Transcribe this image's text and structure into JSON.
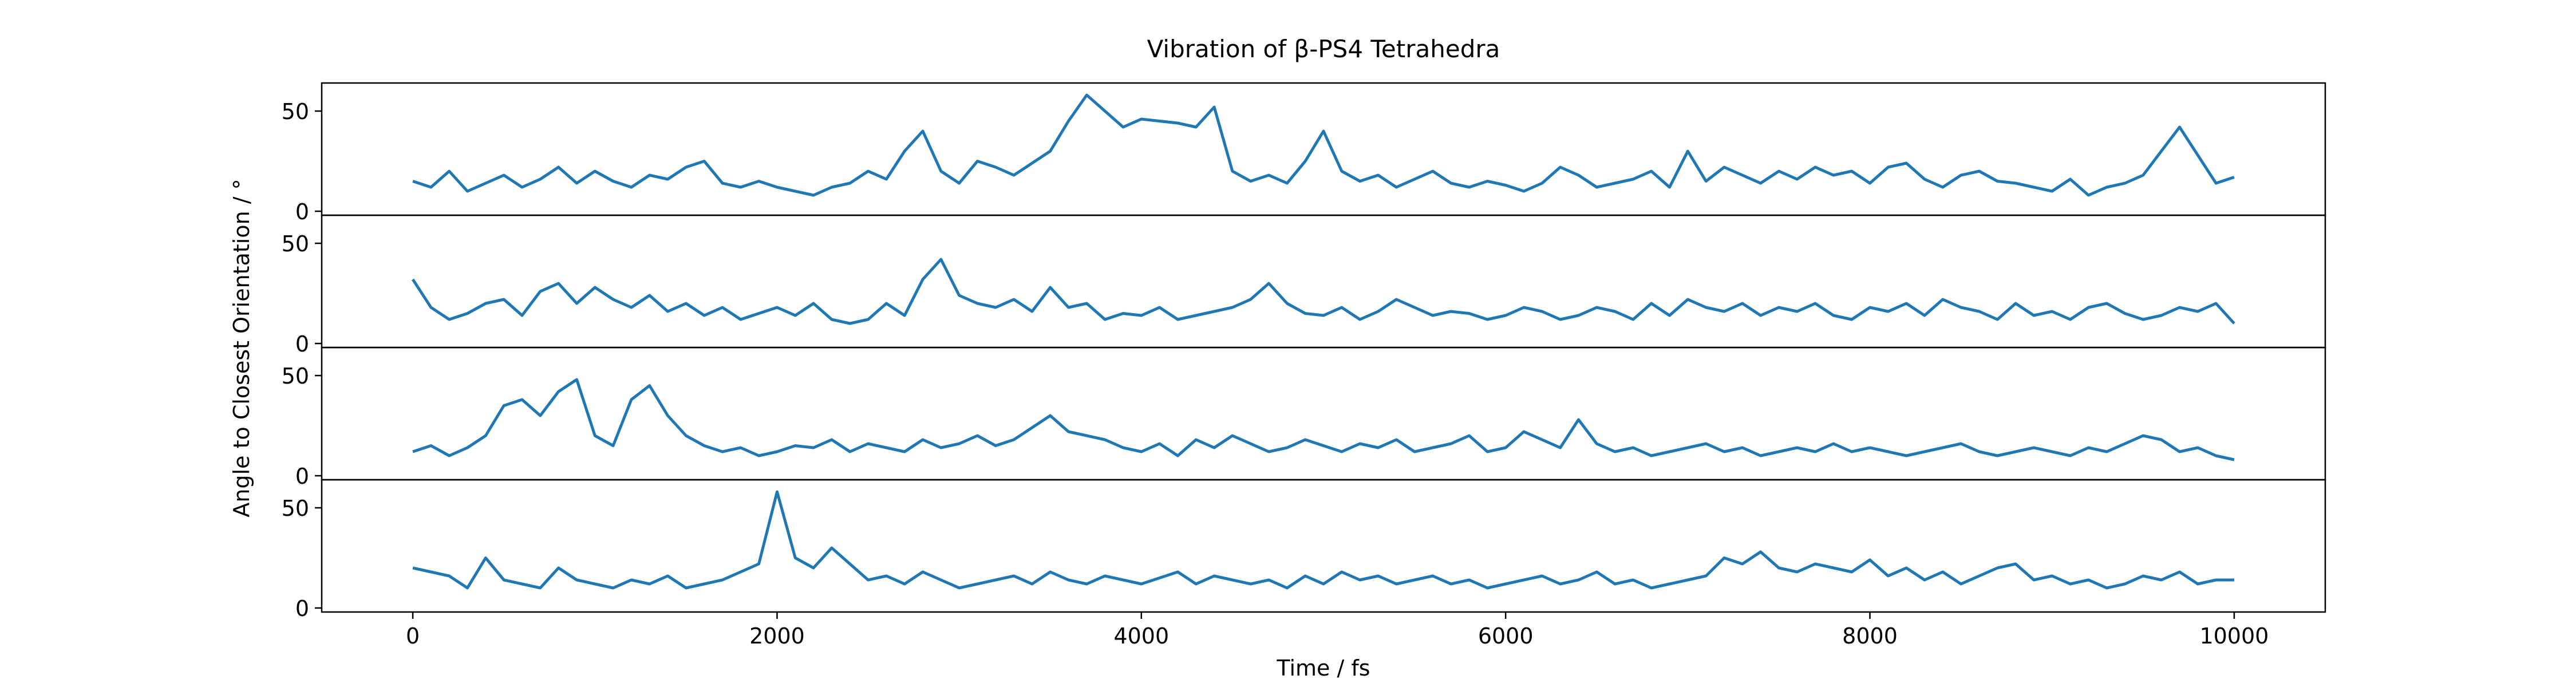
{
  "chart_data": {
    "type": "line",
    "title": "Vibration of β-PS4 Tetrahedra",
    "xlabel": "Time / fs",
    "ylabel": "Angle to Closest Orientation / °",
    "xlim": [
      -500,
      10500
    ],
    "ylim": [
      -2,
      64
    ],
    "x_ticks": [
      0,
      2000,
      4000,
      6000,
      8000,
      10000
    ],
    "x_tick_labels": [
      "0",
      "2000",
      "4000",
      "6000",
      "8000",
      "10000"
    ],
    "y_ticks": [
      0,
      50
    ],
    "y_tick_labels": [
      "0",
      "50"
    ],
    "grid": false,
    "line_color": "#1f77b4",
    "x": [
      0,
      100,
      200,
      300,
      400,
      500,
      600,
      700,
      800,
      900,
      1000,
      1100,
      1200,
      1300,
      1400,
      1500,
      1600,
      1700,
      1800,
      1900,
      2000,
      2100,
      2200,
      2300,
      2400,
      2500,
      2600,
      2700,
      2800,
      2900,
      3000,
      3100,
      3200,
      3300,
      3400,
      3500,
      3600,
      3700,
      3800,
      3900,
      4000,
      4100,
      4200,
      4300,
      4400,
      4500,
      4600,
      4700,
      4800,
      4900,
      5000,
      5100,
      5200,
      5300,
      5400,
      5500,
      5600,
      5700,
      5800,
      5900,
      6000,
      6100,
      6200,
      6300,
      6400,
      6500,
      6600,
      6700,
      6800,
      6900,
      7000,
      7100,
      7200,
      7300,
      7400,
      7500,
      7600,
      7700,
      7800,
      7900,
      8000,
      8100,
      8200,
      8300,
      8400,
      8500,
      8600,
      8700,
      8800,
      8900,
      9000,
      9100,
      9200,
      9300,
      9400,
      9500,
      9600,
      9700,
      9800,
      9900,
      10000
    ],
    "series": [
      {
        "values": [
          15,
          12,
          20,
          10,
          14,
          18,
          12,
          16,
          22,
          14,
          20,
          15,
          12,
          18,
          16,
          22,
          25,
          14,
          12,
          15,
          12,
          10,
          8,
          12,
          14,
          20,
          16,
          30,
          40,
          20,
          14,
          25,
          22,
          18,
          24,
          30,
          45,
          58,
          50,
          42,
          46,
          45,
          44,
          42,
          52,
          20,
          15,
          18,
          14,
          25,
          40,
          20,
          15,
          18,
          12,
          16,
          20,
          14,
          12,
          15,
          13,
          10,
          14,
          22,
          18,
          12,
          14,
          16,
          20,
          12,
          30,
          15,
          22,
          18,
          14,
          20,
          16,
          22,
          18,
          20,
          14,
          22,
          24,
          16,
          12,
          18,
          20,
          15,
          14,
          12,
          10,
          16,
          8,
          12,
          14,
          18,
          30,
          42,
          28,
          14,
          17
        ]
      },
      {
        "values": [
          32,
          18,
          12,
          15,
          20,
          22,
          14,
          26,
          30,
          20,
          28,
          22,
          18,
          24,
          16,
          20,
          14,
          18,
          12,
          15,
          18,
          14,
          20,
          12,
          10,
          12,
          20,
          14,
          32,
          42,
          24,
          20,
          18,
          22,
          16,
          28,
          18,
          20,
          12,
          15,
          14,
          18,
          12,
          14,
          16,
          18,
          22,
          30,
          20,
          15,
          14,
          18,
          12,
          16,
          22,
          18,
          14,
          16,
          15,
          12,
          14,
          18,
          16,
          12,
          14,
          18,
          16,
          12,
          20,
          14,
          22,
          18,
          16,
          20,
          14,
          18,
          16,
          20,
          14,
          12,
          18,
          16,
          20,
          14,
          22,
          18,
          16,
          12,
          20,
          14,
          16,
          12,
          18,
          20,
          15,
          12,
          14,
          18,
          16,
          20,
          10
        ]
      },
      {
        "values": [
          12,
          15,
          10,
          14,
          20,
          35,
          38,
          30,
          42,
          48,
          20,
          15,
          38,
          45,
          30,
          20,
          15,
          12,
          14,
          10,
          12,
          15,
          14,
          18,
          12,
          16,
          14,
          12,
          18,
          14,
          16,
          20,
          15,
          18,
          24,
          30,
          22,
          20,
          18,
          14,
          12,
          16,
          10,
          18,
          14,
          20,
          16,
          12,
          14,
          18,
          15,
          12,
          16,
          14,
          18,
          12,
          14,
          16,
          20,
          12,
          14,
          22,
          18,
          14,
          28,
          16,
          12,
          14,
          10,
          12,
          14,
          16,
          12,
          14,
          10,
          12,
          14,
          12,
          16,
          12,
          14,
          12,
          10,
          12,
          14,
          16,
          12,
          10,
          12,
          14,
          12,
          10,
          14,
          12,
          16,
          20,
          18,
          12,
          14,
          10,
          8
        ]
      },
      {
        "values": [
          20,
          18,
          16,
          10,
          25,
          14,
          12,
          10,
          20,
          14,
          12,
          10,
          14,
          12,
          16,
          10,
          12,
          14,
          18,
          22,
          58,
          25,
          20,
          30,
          22,
          14,
          16,
          12,
          18,
          14,
          10,
          12,
          14,
          16,
          12,
          18,
          14,
          12,
          16,
          14,
          12,
          15,
          18,
          12,
          16,
          14,
          12,
          14,
          10,
          16,
          12,
          18,
          14,
          16,
          12,
          14,
          16,
          12,
          14,
          10,
          12,
          14,
          16,
          12,
          14,
          18,
          12,
          14,
          10,
          12,
          14,
          16,
          25,
          22,
          28,
          20,
          18,
          22,
          20,
          18,
          24,
          16,
          20,
          14,
          18,
          12,
          16,
          20,
          22,
          14,
          16,
          12,
          14,
          10,
          12,
          16,
          14,
          18,
          12,
          14,
          14
        ]
      }
    ]
  }
}
